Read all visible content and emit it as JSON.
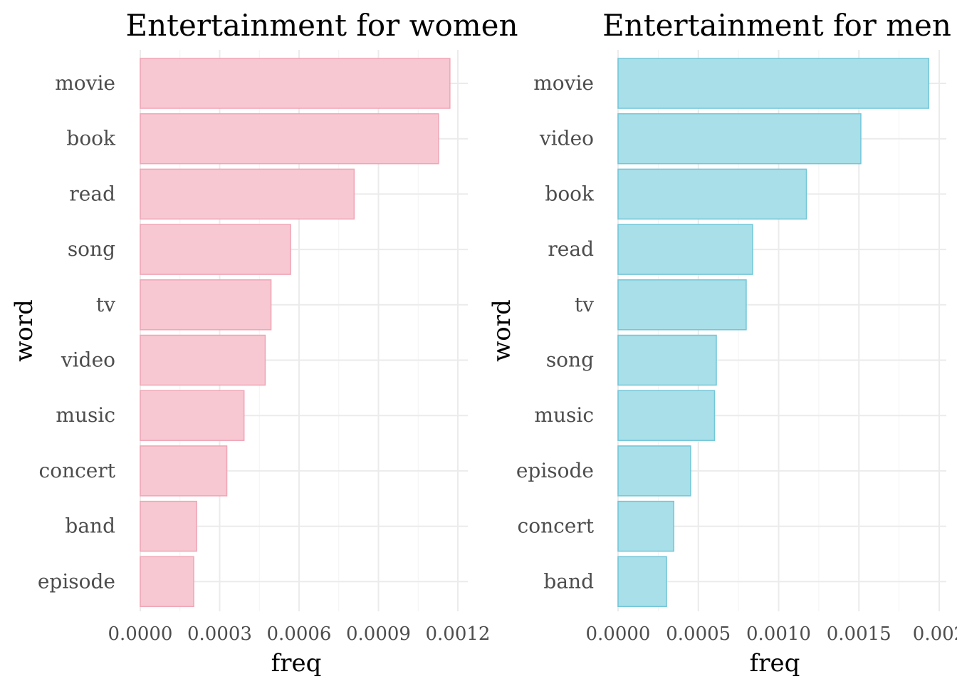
{
  "chart_data": [
    {
      "type": "bar",
      "orientation": "horizontal",
      "title": "Entertainment for women",
      "xlabel": "freq",
      "ylabel": "word",
      "categories": [
        "movie",
        "book",
        "read",
        "song",
        "tv",
        "video",
        "music",
        "concert",
        "band",
        "episode"
      ],
      "values": [
        0.00117,
        0.001127,
        0.000808,
        0.000568,
        0.000494,
        0.000472,
        0.000392,
        0.000327,
        0.000213,
        0.000202
      ],
      "xlim": [
        0,
        0.00122
      ],
      "x_ticks": [
        0,
        0.0003,
        0.0006,
        0.0009,
        0.0012
      ],
      "x_tick_labels": [
        "0.0000",
        "0.0003",
        "0.0006",
        "0.0009",
        "0.0012"
      ],
      "grid": true,
      "bar_fill": "#f7c8d1",
      "bar_stroke": "#f0a5b5"
    },
    {
      "type": "bar",
      "orientation": "horizontal",
      "title": "Entertainment for men",
      "xlabel": "freq",
      "ylabel": "word",
      "categories": [
        "movie",
        "video",
        "book",
        "read",
        "tv",
        "song",
        "music",
        "episode",
        "concert",
        "band"
      ],
      "values": [
        0.001935,
        0.001512,
        0.001173,
        0.000838,
        0.000798,
        0.000612,
        0.000601,
        0.000452,
        0.000347,
        0.000302
      ],
      "xlim": [
        0,
        0.002
      ],
      "x_ticks": [
        0,
        0.0005,
        0.001,
        0.0015,
        0.002
      ],
      "x_tick_labels": [
        "0.0000",
        "0.0005",
        "0.0010",
        "0.0015",
        "0.002"
      ],
      "grid": true,
      "bar_fill": "#a8dfe8",
      "bar_stroke": "#72c6d8"
    }
  ]
}
